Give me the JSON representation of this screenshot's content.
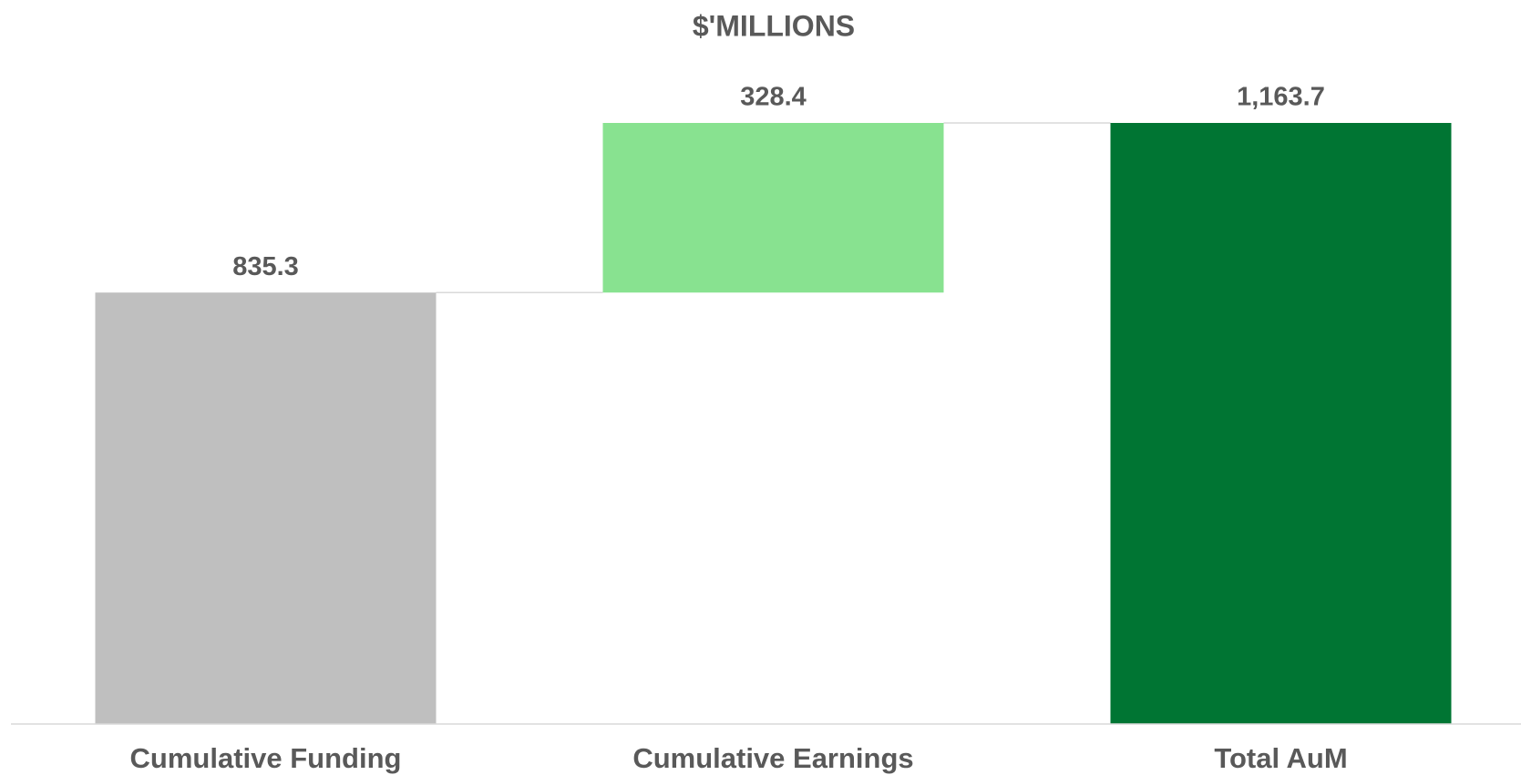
{
  "chart_data": {
    "type": "waterfall",
    "title": "$'MILLIONS",
    "categories": [
      "Cumulative Funding",
      "Cumulative Earnings",
      "Total AuM"
    ],
    "measure": [
      "absolute",
      "relative",
      "total"
    ],
    "values": [
      835.3,
      328.4,
      1163.7
    ],
    "value_labels": [
      "835.3",
      "328.4",
      "1,163.7"
    ],
    "colors": [
      "#bfbfbf",
      "#88e290",
      "#007533"
    ]
  }
}
